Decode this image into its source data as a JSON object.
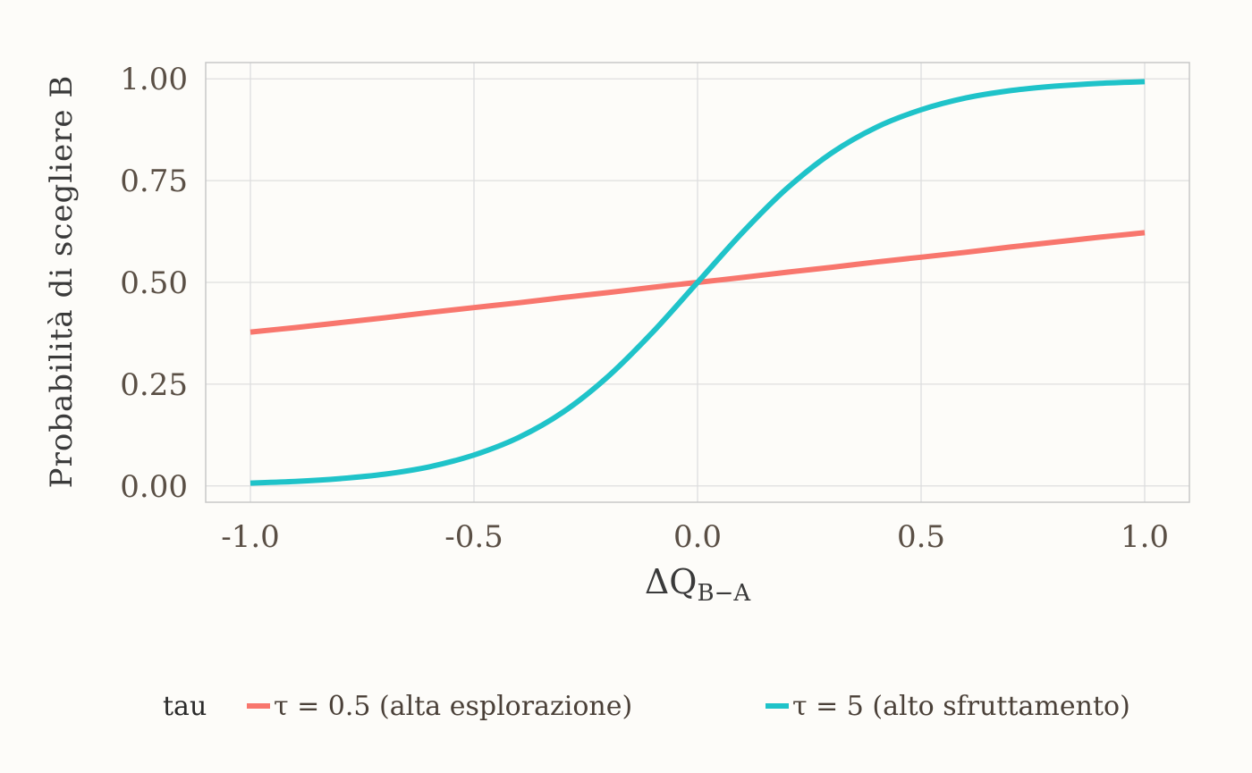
{
  "chart_data": {
    "type": "line",
    "x": [
      -1.0,
      -0.9,
      -0.8,
      -0.7,
      -0.6,
      -0.5,
      -0.4,
      -0.3,
      -0.2,
      -0.1,
      0.0,
      0.1,
      0.2,
      0.3,
      0.4,
      0.5,
      0.6,
      0.7,
      0.8,
      0.9,
      1.0
    ],
    "series": [
      {
        "name": "τ = 0.5 (alta esplorazione)",
        "color": "#f8766d",
        "values": [
          0.378,
          0.389,
          0.401,
          0.413,
          0.426,
          0.438,
          0.45,
          0.463,
          0.475,
          0.488,
          0.5,
          0.512,
          0.525,
          0.537,
          0.55,
          0.562,
          0.574,
          0.587,
          0.599,
          0.611,
          0.622
        ]
      },
      {
        "name": "τ = 5 (alto sfruttamento)",
        "color": "#1fc3c9",
        "values": [
          0.007,
          0.011,
          0.018,
          0.029,
          0.047,
          0.076,
          0.119,
          0.182,
          0.269,
          0.378,
          0.5,
          0.622,
          0.731,
          0.818,
          0.881,
          0.924,
          0.953,
          0.971,
          0.982,
          0.989,
          0.993
        ]
      }
    ],
    "xlabel": "ΔQ",
    "xlabel_sub": "B−A",
    "ylabel": "Probabilità di scegliere B",
    "xlim": [
      -1.1,
      1.1
    ],
    "ylim": [
      -0.04,
      1.04
    ],
    "xticks": [
      -1.0,
      -0.5,
      0.0,
      0.5,
      1.0
    ],
    "xtick_labels": [
      "-1.0",
      "-0.5",
      "0.0",
      "0.5",
      "1.0"
    ],
    "yticks": [
      0.0,
      0.25,
      0.5,
      0.75,
      1.0
    ],
    "ytick_labels": [
      "0.00",
      "0.25",
      "0.50",
      "0.75",
      "1.00"
    ],
    "grid": true,
    "legend": {
      "title": "tau",
      "placement": "bottom"
    }
  }
}
